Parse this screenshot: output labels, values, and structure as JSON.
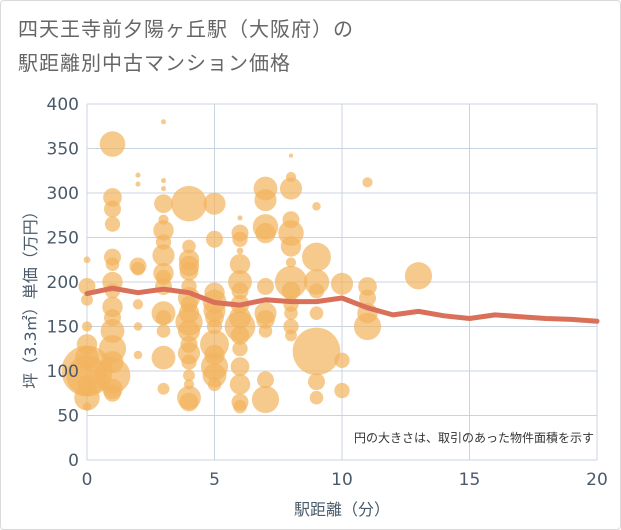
{
  "title_line1": "四天王寺前夕陽ヶ丘駅（大阪府）の",
  "title_line2": "駅距離別中古マンション価格",
  "chart_data": {
    "type": "scatter",
    "title": "四天王寺前夕陽ヶ丘駅（大阪府）の駅距離別中古マンション価格",
    "xlabel": "駅距離（分）",
    "ylabel": "坪（3.3㎡）単価（万円）",
    "xlim": [
      0,
      20
    ],
    "ylim": [
      0,
      400
    ],
    "xticks": [
      0,
      5,
      10,
      15,
      20
    ],
    "yticks": [
      0,
      50,
      100,
      150,
      200,
      250,
      300,
      350,
      400
    ],
    "grid": true,
    "note": "円の大きさは、取引のあった物件面積を示す",
    "colors": {
      "bubble": "#f2b45c",
      "trend": "#d9705a",
      "grid": "#c8d4e0"
    },
    "bubbles": [
      {
        "x": 0,
        "y": 100,
        "s": 3
      },
      {
        "x": 0,
        "y": 95,
        "s": 2.4
      },
      {
        "x": 0,
        "y": 70,
        "s": 1.5
      },
      {
        "x": 0,
        "y": 130,
        "s": 1.2
      },
      {
        "x": 0,
        "y": 195,
        "s": 1
      },
      {
        "x": 0,
        "y": 180,
        "s": 0.7
      },
      {
        "x": 0,
        "y": 150,
        "s": 0.6
      },
      {
        "x": 0,
        "y": 115,
        "s": 1.4
      },
      {
        "x": 0,
        "y": 85,
        "s": 1.1
      },
      {
        "x": 0,
        "y": 60,
        "s": 0.5
      },
      {
        "x": 0,
        "y": 225,
        "s": 0.4
      },
      {
        "x": 1,
        "y": 355,
        "s": 1.5
      },
      {
        "x": 1,
        "y": 295,
        "s": 1.1
      },
      {
        "x": 1,
        "y": 282,
        "s": 1
      },
      {
        "x": 1,
        "y": 265,
        "s": 0.9
      },
      {
        "x": 1,
        "y": 228,
        "s": 1
      },
      {
        "x": 1,
        "y": 220,
        "s": 0.8
      },
      {
        "x": 1,
        "y": 200,
        "s": 1.2
      },
      {
        "x": 1,
        "y": 190,
        "s": 0.9
      },
      {
        "x": 1,
        "y": 172,
        "s": 1.2
      },
      {
        "x": 1,
        "y": 160,
        "s": 1
      },
      {
        "x": 1,
        "y": 145,
        "s": 1.4
      },
      {
        "x": 1,
        "y": 125,
        "s": 1.6
      },
      {
        "x": 1,
        "y": 110,
        "s": 1.3
      },
      {
        "x": 1,
        "y": 95,
        "s": 2.1
      },
      {
        "x": 1,
        "y": 80,
        "s": 1.2
      },
      {
        "x": 1,
        "y": 75,
        "s": 1
      },
      {
        "x": 2,
        "y": 320,
        "s": 0.3
      },
      {
        "x": 2,
        "y": 310,
        "s": 0.3
      },
      {
        "x": 2,
        "y": 218,
        "s": 1
      },
      {
        "x": 2,
        "y": 215,
        "s": 0.8
      },
      {
        "x": 2,
        "y": 175,
        "s": 0.6
      },
      {
        "x": 2,
        "y": 150,
        "s": 0.5
      },
      {
        "x": 2,
        "y": 118,
        "s": 0.5
      },
      {
        "x": 3,
        "y": 380,
        "s": 0.3
      },
      {
        "x": 3,
        "y": 314,
        "s": 0.3
      },
      {
        "x": 3,
        "y": 305,
        "s": 0.3
      },
      {
        "x": 3,
        "y": 288,
        "s": 1.1
      },
      {
        "x": 3,
        "y": 270,
        "s": 0.6
      },
      {
        "x": 3,
        "y": 258,
        "s": 1.2
      },
      {
        "x": 3,
        "y": 245,
        "s": 0.9
      },
      {
        "x": 3,
        "y": 230,
        "s": 1.3
      },
      {
        "x": 3,
        "y": 210,
        "s": 1.2
      },
      {
        "x": 3,
        "y": 205,
        "s": 0.9
      },
      {
        "x": 3,
        "y": 195,
        "s": 1
      },
      {
        "x": 3,
        "y": 165,
        "s": 1.4
      },
      {
        "x": 3,
        "y": 160,
        "s": 0.9
      },
      {
        "x": 3,
        "y": 145,
        "s": 0.8
      },
      {
        "x": 3,
        "y": 115,
        "s": 1.4
      },
      {
        "x": 3,
        "y": 80,
        "s": 0.7
      },
      {
        "x": 4,
        "y": 288,
        "s": 2.1
      },
      {
        "x": 4,
        "y": 240,
        "s": 0.8
      },
      {
        "x": 4,
        "y": 225,
        "s": 1.2
      },
      {
        "x": 4,
        "y": 218,
        "s": 1.2
      },
      {
        "x": 4,
        "y": 212,
        "s": 1.1
      },
      {
        "x": 4,
        "y": 195,
        "s": 0.9
      },
      {
        "x": 4,
        "y": 182,
        "s": 1.3
      },
      {
        "x": 4,
        "y": 175,
        "s": 1
      },
      {
        "x": 4,
        "y": 165,
        "s": 1.2
      },
      {
        "x": 4,
        "y": 155,
        "s": 1.6
      },
      {
        "x": 4,
        "y": 145,
        "s": 1.3
      },
      {
        "x": 4,
        "y": 130,
        "s": 1
      },
      {
        "x": 4,
        "y": 120,
        "s": 1.3
      },
      {
        "x": 4,
        "y": 110,
        "s": 0.9
      },
      {
        "x": 4,
        "y": 95,
        "s": 0.7
      },
      {
        "x": 4,
        "y": 85,
        "s": 0.6
      },
      {
        "x": 4,
        "y": 70,
        "s": 1.4
      },
      {
        "x": 4,
        "y": 65,
        "s": 1.1
      },
      {
        "x": 5,
        "y": 288,
        "s": 1.3
      },
      {
        "x": 5,
        "y": 248,
        "s": 1
      },
      {
        "x": 5,
        "y": 188,
        "s": 1.2
      },
      {
        "x": 5,
        "y": 178,
        "s": 1.4
      },
      {
        "x": 5,
        "y": 168,
        "s": 1.3
      },
      {
        "x": 5,
        "y": 160,
        "s": 1.1
      },
      {
        "x": 5,
        "y": 150,
        "s": 0.9
      },
      {
        "x": 5,
        "y": 130,
        "s": 1.7
      },
      {
        "x": 5,
        "y": 118,
        "s": 1.2
      },
      {
        "x": 5,
        "y": 105,
        "s": 1.6
      },
      {
        "x": 5,
        "y": 95,
        "s": 1.4
      },
      {
        "x": 5,
        "y": 85,
        "s": 0.8
      },
      {
        "x": 6,
        "y": 272,
        "s": 0.3
      },
      {
        "x": 6,
        "y": 255,
        "s": 1
      },
      {
        "x": 6,
        "y": 248,
        "s": 0.9
      },
      {
        "x": 6,
        "y": 235,
        "s": 0.4
      },
      {
        "x": 6,
        "y": 220,
        "s": 1.2
      },
      {
        "x": 6,
        "y": 200,
        "s": 1.4
      },
      {
        "x": 6,
        "y": 190,
        "s": 1
      },
      {
        "x": 6,
        "y": 175,
        "s": 1.1
      },
      {
        "x": 6,
        "y": 160,
        "s": 1.3
      },
      {
        "x": 6,
        "y": 150,
        "s": 1.8
      },
      {
        "x": 6,
        "y": 140,
        "s": 1.1
      },
      {
        "x": 6,
        "y": 125,
        "s": 0.9
      },
      {
        "x": 6,
        "y": 105,
        "s": 1.1
      },
      {
        "x": 6,
        "y": 85,
        "s": 1.2
      },
      {
        "x": 6,
        "y": 65,
        "s": 1
      },
      {
        "x": 6,
        "y": 60,
        "s": 0.8
      },
      {
        "x": 7,
        "y": 305,
        "s": 1.4
      },
      {
        "x": 7,
        "y": 292,
        "s": 1.3
      },
      {
        "x": 7,
        "y": 262,
        "s": 1.5
      },
      {
        "x": 7,
        "y": 255,
        "s": 1.2
      },
      {
        "x": 7,
        "y": 195,
        "s": 1
      },
      {
        "x": 7,
        "y": 165,
        "s": 1.3
      },
      {
        "x": 7,
        "y": 158,
        "s": 1.1
      },
      {
        "x": 7,
        "y": 145,
        "s": 0.8
      },
      {
        "x": 7,
        "y": 90,
        "s": 1
      },
      {
        "x": 7,
        "y": 68,
        "s": 1.6
      },
      {
        "x": 8,
        "y": 342,
        "s": 0.25
      },
      {
        "x": 8,
        "y": 318,
        "s": 0.6
      },
      {
        "x": 8,
        "y": 305,
        "s": 1.3
      },
      {
        "x": 8,
        "y": 270,
        "s": 1
      },
      {
        "x": 8,
        "y": 255,
        "s": 1.5
      },
      {
        "x": 8,
        "y": 240,
        "s": 1.2
      },
      {
        "x": 8,
        "y": 222,
        "s": 0.6
      },
      {
        "x": 8,
        "y": 200,
        "s": 1.9
      },
      {
        "x": 8,
        "y": 190,
        "s": 1.1
      },
      {
        "x": 8,
        "y": 175,
        "s": 0.9
      },
      {
        "x": 8,
        "y": 165,
        "s": 0.8
      },
      {
        "x": 8,
        "y": 150,
        "s": 0.9
      },
      {
        "x": 8,
        "y": 140,
        "s": 0.7
      },
      {
        "x": 9,
        "y": 285,
        "s": 0.5
      },
      {
        "x": 9,
        "y": 228,
        "s": 1.7
      },
      {
        "x": 9,
        "y": 200,
        "s": 1.5
      },
      {
        "x": 9,
        "y": 190,
        "s": 0.9
      },
      {
        "x": 9,
        "y": 165,
        "s": 0.8
      },
      {
        "x": 9,
        "y": 122,
        "s": 2.8
      },
      {
        "x": 9,
        "y": 88,
        "s": 1
      },
      {
        "x": 9,
        "y": 70,
        "s": 0.8
      },
      {
        "x": 10,
        "y": 198,
        "s": 1.3
      },
      {
        "x": 10,
        "y": 112,
        "s": 0.9
      },
      {
        "x": 10,
        "y": 78,
        "s": 0.9
      },
      {
        "x": 11,
        "y": 312,
        "s": 0.6
      },
      {
        "x": 11,
        "y": 195,
        "s": 1.1
      },
      {
        "x": 11,
        "y": 182,
        "s": 1
      },
      {
        "x": 11,
        "y": 165,
        "s": 1.2
      },
      {
        "x": 11,
        "y": 150,
        "s": 1.6
      },
      {
        "x": 13,
        "y": 207,
        "s": 1.6
      }
    ],
    "trend": {
      "x": [
        0,
        1,
        2,
        3,
        4,
        5,
        6,
        7,
        8,
        9,
        10,
        11,
        12,
        13,
        14,
        15,
        16,
        17,
        18,
        19,
        20
      ],
      "y": [
        187,
        193,
        188,
        192,
        188,
        177,
        174,
        180,
        178,
        178,
        182,
        171,
        163,
        167,
        162,
        159,
        163,
        161,
        159,
        158,
        156
      ]
    }
  }
}
